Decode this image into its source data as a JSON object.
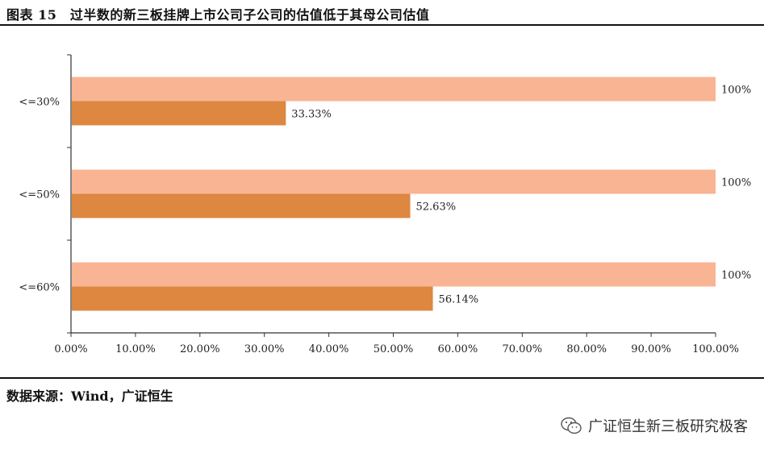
{
  "header": {
    "title": "图表 15　过半数的新三板挂牌上市公司子公司的估值低于其母公司估值"
  },
  "footer": {
    "source": "数据来源：Wind，广证恒生",
    "watermark": "广证恒生新三板研究极客",
    "watermark_icon": "wechat-icon"
  },
  "chart_data": {
    "type": "bar",
    "orientation": "horizontal",
    "categories": [
      "<=30%",
      "<=50%",
      "<=60%"
    ],
    "series": [
      {
        "values": [
          100,
          100,
          100
        ],
        "labels": [
          "100%",
          "100%",
          "100%"
        ],
        "color": "#F8B493"
      },
      {
        "values": [
          33.33,
          52.63,
          56.14
        ],
        "labels": [
          "33.33%",
          "52.63%",
          "56.14%"
        ],
        "color": "#DD8741"
      }
    ],
    "xlim": [
      0,
      100
    ],
    "xticks": [
      "0.00%",
      "10.00%",
      "20.00%",
      "30.00%",
      "40.00%",
      "50.00%",
      "60.00%",
      "70.00%",
      "80.00%",
      "90.00%",
      "100.00%"
    ],
    "grid": false,
    "legend": "none"
  }
}
